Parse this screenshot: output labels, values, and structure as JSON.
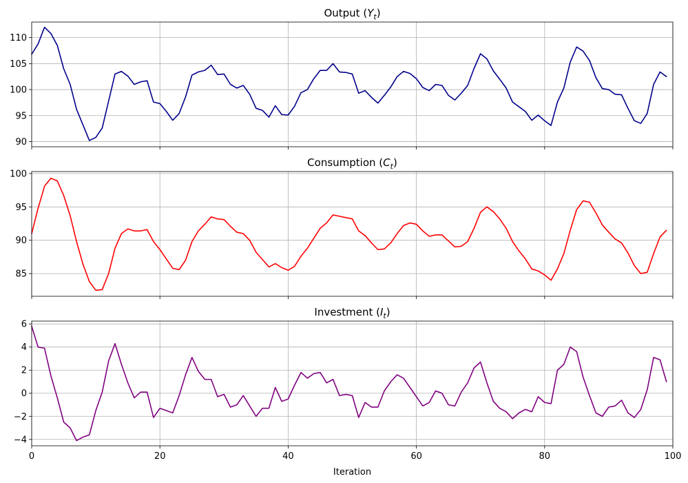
{
  "chart_data": [
    {
      "type": "line",
      "title": "Output (",
      "title_var": "Y",
      "title_sub": "t",
      "title_close": ")",
      "color": "#00008b",
      "xlim": [
        0,
        100
      ],
      "ylim": [
        89,
        113
      ],
      "yticks": [
        90,
        95,
        100,
        105,
        110
      ],
      "xticks": [
        0,
        20,
        40,
        60,
        80,
        100
      ],
      "grid": true,
      "x_start": 0,
      "values": [
        106.8,
        108.8,
        112.0,
        110.8,
        108.5,
        104.0,
        101.0,
        96.2,
        93.2,
        90.2,
        90.8,
        92.6,
        97.8,
        103.0,
        103.5,
        102.6,
        101.0,
        101.5,
        101.7,
        97.6,
        97.3,
        95.8,
        94.1,
        95.4,
        98.6,
        102.8,
        103.4,
        103.7,
        104.7,
        102.9,
        103.0,
        101.0,
        100.3,
        100.8,
        99.1,
        96.4,
        96.0,
        94.7,
        96.9,
        95.2,
        95.1,
        96.8,
        99.4,
        100.0,
        102.1,
        103.7,
        103.7,
        105.0,
        103.4,
        103.3,
        103.0,
        99.3,
        99.8,
        98.5,
        97.4,
        98.9,
        100.5,
        102.5,
        103.5,
        103.1,
        102.1,
        100.4,
        99.8,
        101.0,
        100.8,
        98.9,
        98.0,
        99.3,
        100.8,
        104.1,
        106.9,
        105.9,
        103.6,
        102.0,
        100.3,
        97.6,
        96.7,
        95.8,
        94.1,
        95.1,
        94.0,
        93.1,
        97.6,
        100.3,
        105.3,
        108.2,
        107.4,
        105.6,
        102.3,
        100.2,
        100.0,
        99.1,
        99.0,
        96.4,
        94.0,
        93.5,
        95.4,
        101.0,
        103.4,
        102.5
      ]
    },
    {
      "type": "line",
      "title": "Consumption (",
      "title_var": "C",
      "title_sub": "t",
      "title_close": ")",
      "color": "#ff0000",
      "xlim": [
        0,
        100
      ],
      "ylim": [
        81.6,
        100.3
      ],
      "yticks": [
        85,
        90,
        95,
        100
      ],
      "xticks": [
        0,
        20,
        40,
        60,
        80,
        100
      ],
      "grid": true,
      "x_start": 0,
      "values": [
        91.0,
        94.8,
        98.1,
        99.3,
        98.9,
        96.7,
        93.7,
        89.8,
        86.4,
        83.8,
        82.5,
        82.6,
        85.0,
        88.8,
        91.0,
        91.7,
        91.4,
        91.4,
        91.6,
        89.8,
        88.6,
        87.2,
        85.8,
        85.6,
        87.0,
        89.8,
        91.4,
        92.4,
        93.5,
        93.2,
        93.1,
        92.1,
        91.2,
        91.0,
        90.0,
        88.2,
        87.1,
        86.0,
        86.5,
        85.9,
        85.5,
        86.1,
        87.6,
        88.8,
        90.3,
        91.8,
        92.6,
        93.8,
        93.6,
        93.4,
        93.2,
        91.4,
        90.7,
        89.6,
        88.6,
        88.7,
        89.6,
        91.0,
        92.2,
        92.6,
        92.4,
        91.4,
        90.6,
        90.8,
        90.8,
        89.9,
        89.0,
        89.1,
        89.8,
        91.8,
        94.2,
        95.0,
        94.3,
        93.2,
        91.8,
        89.8,
        88.4,
        87.2,
        85.7,
        85.4,
        84.8,
        84.0,
        85.7,
        88.0,
        91.5,
        94.6,
        95.9,
        95.7,
        94.1,
        92.3,
        91.2,
        90.2,
        89.6,
        88.1,
        86.2,
        85.0,
        85.2,
        88.0,
        90.5,
        91.5
      ]
    },
    {
      "type": "line",
      "title": "Investment (",
      "title_var": "I",
      "title_sub": "t",
      "title_close": ")",
      "color": "#800080",
      "xlim": [
        0,
        100
      ],
      "ylim": [
        -4.55,
        6.25
      ],
      "yticks": [
        -4,
        -2,
        0,
        2,
        4,
        6
      ],
      "xticks": [
        0,
        20,
        40,
        60,
        80,
        100
      ],
      "xlabel": "Iteration",
      "grid": true,
      "x_start": 0,
      "values": [
        5.8,
        4.0,
        3.9,
        1.5,
        -0.4,
        -2.5,
        -3.0,
        -4.1,
        -3.8,
        -3.6,
        -1.5,
        0.1,
        2.8,
        4.3,
        2.5,
        0.9,
        -0.4,
        0.1,
        0.1,
        -2.1,
        -1.3,
        -1.5,
        -1.7,
        -0.2,
        1.6,
        3.1,
        1.9,
        1.2,
        1.2,
        -0.3,
        -0.1,
        -1.2,
        -1.0,
        -0.2,
        -1.1,
        -2.0,
        -1.3,
        -1.3,
        0.5,
        -0.7,
        -0.5,
        0.7,
        1.8,
        1.3,
        1.7,
        1.8,
        0.9,
        1.2,
        -0.2,
        -0.1,
        -0.2,
        -2.1,
        -0.8,
        -1.2,
        -1.2,
        0.2,
        1.0,
        1.6,
        1.3,
        0.5,
        -0.3,
        -1.1,
        -0.8,
        0.2,
        0.0,
        -1.0,
        -1.1,
        0.1,
        0.9,
        2.2,
        2.7,
        0.9,
        -0.7,
        -1.3,
        -1.6,
        -2.2,
        -1.7,
        -1.4,
        -1.6,
        -0.3,
        -0.8,
        -0.9,
        2.0,
        2.5,
        4.0,
        3.6,
        1.4,
        -0.2,
        -1.7,
        -2.0,
        -1.2,
        -1.1,
        -0.6,
        -1.7,
        -2.1,
        -1.4,
        0.3,
        3.1,
        2.9,
        1.0
      ]
    }
  ]
}
